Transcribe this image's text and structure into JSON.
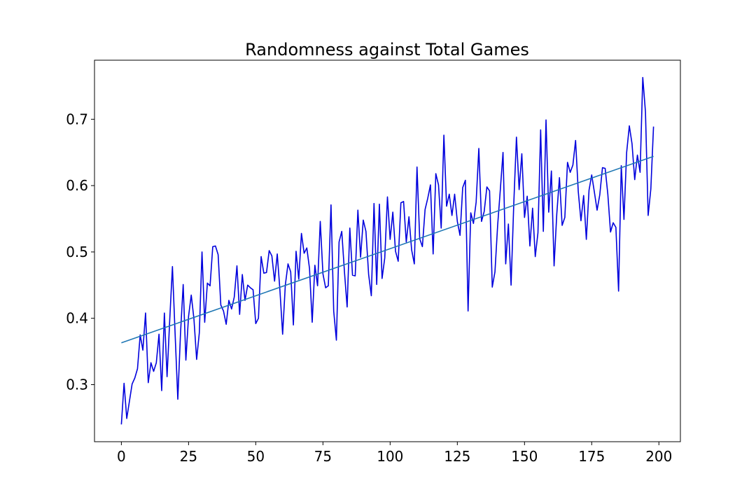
{
  "chart_data": {
    "type": "line",
    "title": "Randomness against Total Games",
    "xlabel": "",
    "ylabel": "",
    "xlim": [
      -10,
      208
    ],
    "ylim": [
      0.214,
      0.789
    ],
    "xticks": [
      0,
      25,
      50,
      75,
      100,
      125,
      150,
      175,
      200
    ],
    "yticks": [
      0.3,
      0.4,
      0.5,
      0.6,
      0.7
    ],
    "x_tick_labels": [
      "0",
      "25",
      "50",
      "75",
      "100",
      "125",
      "150",
      "175",
      "200"
    ],
    "y_tick_labels": [
      "0.3",
      "0.4",
      "0.5",
      "0.6",
      "0.7"
    ],
    "grid": false,
    "legend": "none",
    "series": [
      {
        "kind": "data",
        "color": "#0000dd",
        "x_start": 0,
        "x_step": 1,
        "values": [
          0.24,
          0.302,
          0.249,
          0.275,
          0.301,
          0.31,
          0.324,
          0.375,
          0.352,
          0.408,
          0.303,
          0.333,
          0.32,
          0.333,
          0.376,
          0.291,
          0.408,
          0.312,
          0.398,
          0.478,
          0.376,
          0.278,
          0.377,
          0.451,
          0.337,
          0.403,
          0.435,
          0.399,
          0.338,
          0.378,
          0.5,
          0.394,
          0.453,
          0.449,
          0.508,
          0.509,
          0.496,
          0.42,
          0.411,
          0.391,
          0.427,
          0.414,
          0.432,
          0.479,
          0.406,
          0.466,
          0.427,
          0.45,
          0.446,
          0.443,
          0.392,
          0.4,
          0.493,
          0.468,
          0.469,
          0.502,
          0.494,
          0.456,
          0.497,
          0.442,
          0.376,
          0.45,
          0.482,
          0.47,
          0.39,
          0.501,
          0.459,
          0.528,
          0.498,
          0.506,
          0.475,
          0.394,
          0.48,
          0.449,
          0.546,
          0.467,
          0.446,
          0.449,
          0.571,
          0.411,
          0.367,
          0.515,
          0.531,
          0.47,
          0.417,
          0.536,
          0.465,
          0.464,
          0.563,
          0.492,
          0.548,
          0.531,
          0.466,
          0.434,
          0.573,
          0.451,
          0.572,
          0.46,
          0.491,
          0.583,
          0.519,
          0.56,
          0.501,
          0.486,
          0.574,
          0.576,
          0.515,
          0.553,
          0.503,
          0.482,
          0.628,
          0.52,
          0.508,
          0.564,
          0.581,
          0.601,
          0.497,
          0.618,
          0.601,
          0.536,
          0.676,
          0.569,
          0.587,
          0.555,
          0.587,
          0.546,
          0.525,
          0.597,
          0.608,
          0.411,
          0.559,
          0.543,
          0.575,
          0.656,
          0.546,
          0.561,
          0.598,
          0.592,
          0.447,
          0.47,
          0.54,
          0.594,
          0.65,
          0.482,
          0.542,
          0.45,
          0.572,
          0.673,
          0.594,
          0.648,
          0.552,
          0.584,
          0.509,
          0.566,
          0.493,
          0.529,
          0.684,
          0.531,
          0.699,
          0.56,
          0.622,
          0.479,
          0.557,
          0.612,
          0.54,
          0.552,
          0.635,
          0.62,
          0.631,
          0.668,
          0.591,
          0.547,
          0.585,
          0.519,
          0.593,
          0.616,
          0.59,
          0.563,
          0.586,
          0.627,
          0.626,
          0.587,
          0.53,
          0.544,
          0.537,
          0.441,
          0.63,
          0.549,
          0.65,
          0.69,
          0.663,
          0.609,
          0.646,
          0.62,
          0.763,
          0.711,
          0.555,
          0.595,
          0.689
        ]
      },
      {
        "kind": "fit",
        "color": "#1f77b4",
        "x": [
          0,
          198
        ],
        "values": [
          0.363,
          0.644
        ]
      }
    ]
  }
}
